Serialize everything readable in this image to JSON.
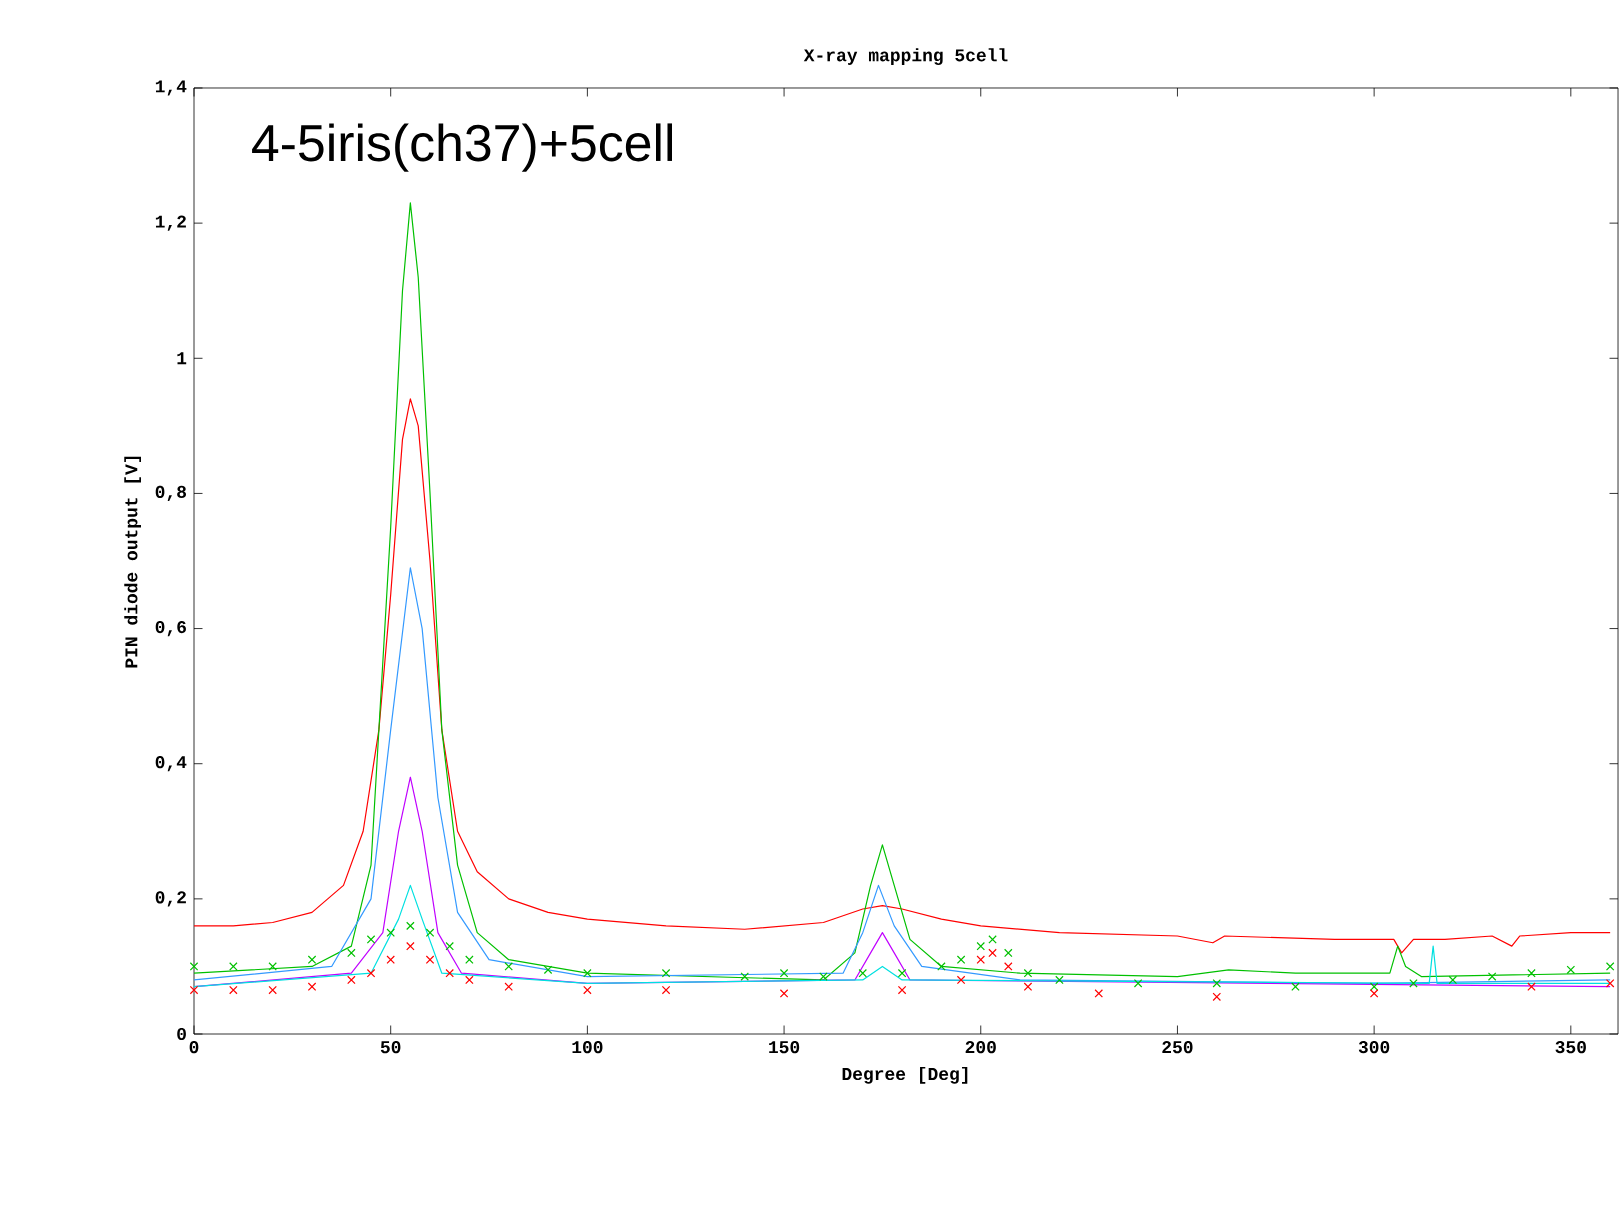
{
  "chart_data": {
    "type": "line",
    "title": "X-ray mapping 5cell",
    "xlabel": "Degree [Deg]",
    "ylabel": "PIN diode output  [V]",
    "annotations": [
      "4-5iris(ch37)+5cell"
    ],
    "xlim": [
      0,
      362
    ],
    "xticks": [
      0,
      50,
      100,
      150,
      200,
      250,
      300,
      350
    ],
    "ylim": [
      0,
      1.4
    ],
    "yticks": [
      0,
      {
        "value": 0.2,
        "label": "0,2"
      },
      {
        "value": 0.4,
        "label": "0,4"
      },
      {
        "value": 0.6,
        "label": "0,6"
      },
      {
        "value": 0.8,
        "label": "0,8"
      },
      1,
      {
        "value": 1.2,
        "label": "1,2"
      },
      {
        "value": 1.4,
        "label": "1,4"
      }
    ],
    "grid": false,
    "series": [
      {
        "type": "scatter",
        "marker": "cross",
        "color": "#00c000",
        "x": [
          0,
          10,
          20,
          30,
          40,
          45,
          50,
          55,
          60,
          65,
          70,
          80,
          90,
          100,
          120,
          140,
          150,
          160,
          170,
          180,
          190,
          195,
          200,
          203,
          207,
          212,
          220,
          240,
          260,
          280,
          300,
          310,
          320,
          330,
          340,
          350,
          360
        ],
        "values": [
          0.1,
          0.1,
          0.1,
          0.11,
          0.12,
          0.14,
          0.15,
          0.16,
          0.15,
          0.13,
          0.11,
          0.1,
          0.095,
          0.09,
          0.09,
          0.085,
          0.09,
          0.085,
          0.09,
          0.09,
          0.1,
          0.11,
          0.13,
          0.14,
          0.12,
          0.09,
          0.08,
          0.075,
          0.075,
          0.07,
          0.07,
          0.075,
          0.08,
          0.085,
          0.09,
          0.095,
          0.1
        ]
      },
      {
        "type": "scatter",
        "marker": "cross",
        "color": "#ff0000",
        "x": [
          0,
          10,
          20,
          30,
          40,
          45,
          50,
          55,
          60,
          65,
          70,
          80,
          100,
          120,
          150,
          180,
          195,
          200,
          203,
          207,
          212,
          230,
          260,
          300,
          340,
          360
        ],
        "values": [
          0.065,
          0.065,
          0.065,
          0.07,
          0.08,
          0.09,
          0.11,
          0.13,
          0.11,
          0.09,
          0.08,
          0.07,
          0.065,
          0.065,
          0.06,
          0.065,
          0.08,
          0.11,
          0.12,
          0.1,
          0.07,
          0.06,
          0.055,
          0.06,
          0.07,
          0.075
        ]
      },
      {
        "color": "#ff0000",
        "x": [
          0,
          10,
          20,
          30,
          38,
          43,
          47,
          50,
          53,
          55,
          57,
          60,
          63,
          67,
          72,
          80,
          90,
          100,
          120,
          140,
          160,
          170,
          175,
          180,
          190,
          200,
          220,
          250,
          259,
          262,
          290,
          305,
          307,
          310,
          318,
          330,
          335,
          337,
          350,
          360
        ],
        "values": [
          0.16,
          0.16,
          0.165,
          0.18,
          0.22,
          0.3,
          0.45,
          0.65,
          0.88,
          0.94,
          0.9,
          0.7,
          0.45,
          0.3,
          0.24,
          0.2,
          0.18,
          0.17,
          0.16,
          0.155,
          0.165,
          0.185,
          0.19,
          0.185,
          0.17,
          0.16,
          0.15,
          0.145,
          0.135,
          0.145,
          0.14,
          0.14,
          0.12,
          0.14,
          0.14,
          0.145,
          0.13,
          0.145,
          0.15,
          0.15
        ]
      },
      {
        "color": "#00c000",
        "x": [
          0,
          30,
          40,
          45,
          50,
          53,
          55,
          57,
          60,
          63,
          67,
          72,
          80,
          100,
          160,
          168,
          172,
          175,
          178,
          182,
          190,
          210,
          250,
          263,
          280,
          304,
          306,
          308,
          312,
          360
        ],
        "values": [
          0.09,
          0.1,
          0.13,
          0.25,
          0.75,
          1.1,
          1.23,
          1.12,
          0.8,
          0.45,
          0.25,
          0.15,
          0.11,
          0.09,
          0.08,
          0.12,
          0.22,
          0.28,
          0.22,
          0.14,
          0.1,
          0.09,
          0.085,
          0.095,
          0.09,
          0.09,
          0.13,
          0.1,
          0.085,
          0.09
        ]
      },
      {
        "color": "#3399ff",
        "x": [
          0,
          35,
          45,
          50,
          55,
          58,
          62,
          67,
          75,
          100,
          165,
          170,
          174,
          178,
          185,
          210,
          300,
          360
        ],
        "values": [
          0.08,
          0.1,
          0.2,
          0.45,
          0.69,
          0.6,
          0.35,
          0.18,
          0.11,
          0.085,
          0.09,
          0.15,
          0.22,
          0.16,
          0.1,
          0.08,
          0.075,
          0.08
        ]
      },
      {
        "color": "#c000ff",
        "x": [
          0,
          40,
          48,
          52,
          55,
          58,
          62,
          68,
          100,
          168,
          172,
          175,
          178,
          182,
          360
        ],
        "values": [
          0.07,
          0.09,
          0.15,
          0.3,
          0.38,
          0.3,
          0.15,
          0.09,
          0.075,
          0.08,
          0.12,
          0.15,
          0.12,
          0.08,
          0.07
        ]
      },
      {
        "color": "#00e0e0",
        "x": [
          0,
          45,
          52,
          55,
          58,
          63,
          100,
          170,
          175,
          180,
          314,
          315,
          316,
          360
        ],
        "values": [
          0.07,
          0.09,
          0.17,
          0.22,
          0.17,
          0.09,
          0.075,
          0.08,
          0.1,
          0.08,
          0.075,
          0.13,
          0.075,
          0.075
        ]
      }
    ]
  }
}
